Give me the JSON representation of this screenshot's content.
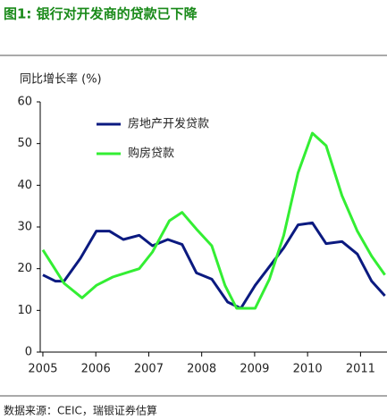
{
  "chart_data": {
    "type": "line",
    "title": "图1: 银行对开发商的贷款已下降",
    "y_label": "同比增长率 (%)",
    "source": "数据来源：CEIC，瑞银证券估算",
    "xlim": [
      2004.95,
      2011.5
    ],
    "xticks": [
      2005,
      2006,
      2007,
      2008,
      2009,
      2010,
      2011
    ],
    "ylim": [
      0,
      60
    ],
    "yticks": [
      0,
      10,
      20,
      30,
      40,
      50,
      60
    ],
    "series": [
      {
        "name": "房地产开发贷款",
        "color": "#0b1a80",
        "x": [
          2005.0,
          2005.24,
          2005.4,
          2005.71,
          2006.01,
          2006.26,
          2006.52,
          2006.82,
          2007.07,
          2007.36,
          2007.63,
          2007.9,
          2008.19,
          2008.49,
          2008.74,
          2009.01,
          2009.28,
          2009.55,
          2009.82,
          2010.09,
          2010.35,
          2010.65,
          2010.94,
          2011.21,
          2011.46
        ],
        "values": [
          18.5,
          17,
          17,
          22.5,
          29,
          29,
          27,
          28,
          25.5,
          27,
          25.8,
          19,
          17.5,
          12,
          10.5,
          16,
          20.5,
          25,
          30.5,
          31,
          26,
          26.5,
          23.5,
          17,
          13.5
        ]
      },
      {
        "name": "购房贷款",
        "color": "#33ee33",
        "x": [
          2005.0,
          2005.2,
          2005.4,
          2005.74,
          2006.01,
          2006.32,
          2006.82,
          2007.07,
          2007.39,
          2007.63,
          2007.9,
          2008.19,
          2008.44,
          2008.66,
          2009.01,
          2009.28,
          2009.55,
          2009.82,
          2010.09,
          2010.35,
          2010.65,
          2010.94,
          2011.21,
          2011.46
        ],
        "values": [
          24.5,
          20.5,
          16.5,
          13,
          16,
          18,
          20,
          24,
          31.5,
          33.5,
          29.5,
          25.5,
          16,
          10.5,
          10.5,
          17.5,
          28,
          43,
          52.5,
          49.5,
          37.5,
          29,
          23,
          18.5
        ]
      }
    ]
  }
}
